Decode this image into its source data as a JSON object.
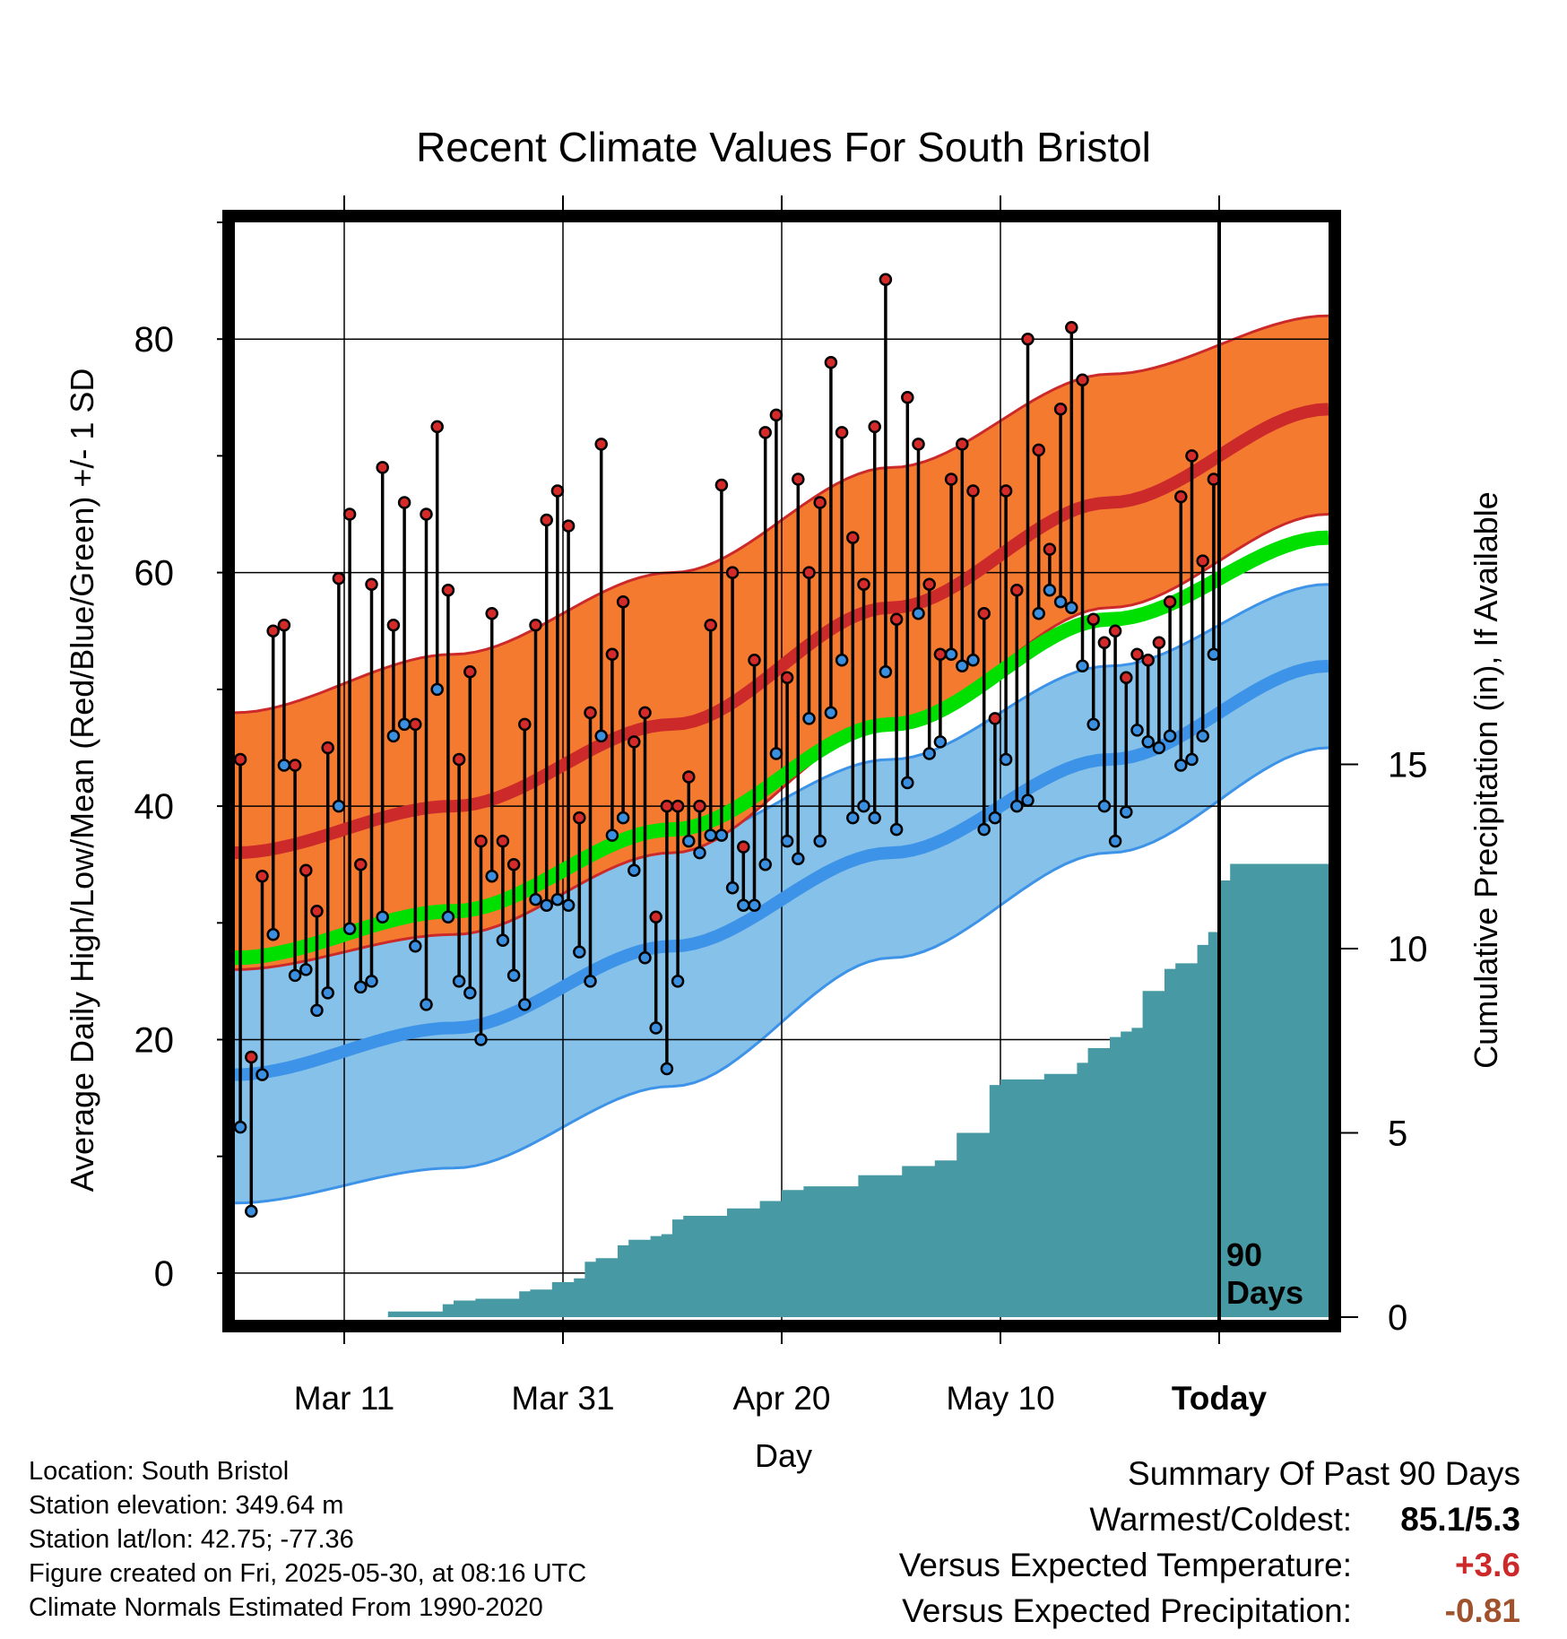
{
  "chart_data": {
    "type": "line",
    "title": "Recent Climate Values For South Bristol",
    "xlabel": "Day",
    "ylabel_left": "Average Daily High/Low/Mean (Red/Blue/Green) +/- 1 SD",
    "ylabel_right": "Cumulative Precipitation (in), If Available",
    "y_ticks_left": [
      "0",
      "20",
      "40",
      "60",
      "80"
    ],
    "y_ticks_right": [
      "0",
      "5",
      "10",
      "15"
    ],
    "x_tick_labels": [
      "Mar 11",
      "Mar 31",
      "Apr 20",
      "May 10",
      "Today"
    ],
    "ylim_left": [
      -4,
      90
    ],
    "ylim_right": [
      0,
      15
    ],
    "grid": true,
    "today_label": [
      "90",
      "Days"
    ],
    "colors": {
      "high_band": "#f47a30",
      "high_mean": "#cc2a2a",
      "low_band": "#85c1e8",
      "low_mean": "#3d93e8",
      "mean": "#00e000",
      "precip": "#479aa3",
      "high_marker": "#d42a2a",
      "low_marker": "#3a8fe0"
    },
    "normals_days": [
      0,
      20,
      40,
      60,
      80,
      100
    ],
    "normal_high": [
      36,
      40,
      47,
      57,
      66,
      74
    ],
    "normal_high_upper": [
      48,
      53,
      60,
      69,
      77,
      82
    ],
    "normal_high_lower": [
      26,
      29,
      36,
      47,
      57,
      65
    ],
    "normal_low": [
      17,
      21,
      28,
      36,
      44,
      52
    ],
    "normal_low_upper": [
      29,
      32,
      37,
      44,
      52,
      59
    ],
    "normal_low_lower": [
      6,
      9,
      16,
      27,
      36,
      45
    ],
    "normal_mean": [
      27,
      31,
      38,
      47,
      56,
      63
    ],
    "daily_highs": [
      44.0,
      18.5,
      34.0,
      55.0,
      55.5,
      43.5,
      34.5,
      31.0,
      45.0,
      59.5,
      65.0,
      35.0,
      59.0,
      69.0,
      55.5,
      66.0,
      47.0,
      65.0,
      72.5,
      58.5,
      44.0,
      51.5,
      37.0,
      56.5,
      37.0,
      35.0,
      47.0,
      55.5,
      64.5,
      67.0,
      64.0,
      39.0,
      48.0,
      71.0,
      53.0,
      57.5,
      45.5,
      48.0,
      30.5,
      40.0,
      40.0,
      42.5,
      40.0,
      55.5,
      67.5,
      60.0,
      36.5,
      52.5,
      72.0,
      73.5,
      51.0,
      68.0,
      60.0,
      66.0,
      78.0,
      72.0,
      63.0,
      59.0,
      72.5,
      85.1,
      56.0,
      75.0,
      71.0,
      59.0,
      53.0,
      68.0,
      71.0,
      67.0,
      56.5,
      47.5,
      67.0,
      58.5,
      80.0,
      70.5,
      62.0,
      74.0,
      81.0,
      76.5,
      56.0,
      54.0,
      55.0,
      51.0,
      53.0,
      52.5,
      54.0,
      57.5,
      66.5,
      70.0,
      61.0,
      68.0
    ],
    "daily_lows": [
      12.5,
      5.3,
      17.0,
      29.0,
      43.5,
      25.5,
      26.0,
      22.5,
      24.0,
      40.0,
      29.5,
      24.5,
      25.0,
      30.5,
      46.0,
      47.0,
      28.0,
      23.0,
      50.0,
      30.5,
      25.0,
      24.0,
      20.0,
      34.0,
      28.5,
      25.5,
      23.0,
      32.0,
      31.5,
      32.0,
      31.5,
      27.5,
      25.0,
      46.0,
      37.5,
      39.0,
      34.5,
      27.0,
      21.0,
      17.5,
      25.0,
      37.0,
      36.0,
      37.5,
      37.5,
      33.0,
      31.5,
      31.5,
      35.0,
      44.5,
      37.0,
      35.5,
      47.5,
      37.0,
      48.0,
      52.5,
      39.0,
      40.0,
      39.0,
      51.5,
      38.0,
      42.0,
      56.5,
      44.5,
      45.5,
      53.0,
      52.0,
      52.5,
      38.0,
      39.0,
      44.0,
      40.0,
      40.5,
      56.5,
      58.5,
      57.5,
      57.0,
      52.0,
      47.0,
      40.0,
      37.0,
      39.5,
      46.5,
      45.5,
      45.0,
      46.0,
      43.5,
      44.0,
      46.0,
      53.0
    ],
    "precip_days": [
      0,
      13,
      14,
      16,
      19,
      20,
      22,
      24,
      26,
      27,
      29,
      31,
      32,
      33,
      35,
      36,
      38,
      39,
      40,
      41,
      43,
      45,
      46,
      48,
      49,
      50,
      51,
      52,
      54,
      56,
      57,
      58,
      59,
      61,
      62,
      64,
      65,
      66,
      67,
      68,
      69,
      70,
      72,
      74,
      75,
      77,
      78,
      80,
      81,
      82,
      83,
      85,
      86,
      88,
      89,
      90,
      91,
      100
    ],
    "precip_cumulative": [
      0.0,
      0.0,
      0.15,
      0.15,
      0.35,
      0.45,
      0.5,
      0.5,
      0.7,
      0.75,
      0.95,
      1.05,
      1.5,
      1.6,
      1.95,
      2.1,
      2.2,
      2.25,
      2.65,
      2.75,
      2.75,
      2.95,
      2.95,
      3.15,
      3.15,
      3.45,
      3.45,
      3.55,
      3.55,
      3.55,
      3.85,
      3.85,
      3.85,
      4.1,
      4.1,
      4.25,
      4.25,
      5.0,
      5.0,
      5.0,
      6.3,
      6.45,
      6.45,
      6.6,
      6.6,
      6.9,
      7.3,
      7.6,
      7.75,
      7.85,
      8.85,
      9.45,
      9.6,
      10.1,
      10.45,
      11.85,
      12.3,
      12.3
    ]
  },
  "footer": {
    "location": "Location: South Bristol",
    "elevation": "Station elevation: 349.64 m",
    "latlon": "Station lat/lon: 42.75; -77.36",
    "created": "Figure created on Fri, 2025-05-30, at 08:16 UTC",
    "normals": "Climate Normals Estimated From 1990-2020"
  },
  "summary": {
    "heading": "Summary Of Past 90 Days",
    "warm_cold_label": "Warmest/Coldest:",
    "warm_cold_value": "85.1/5.3",
    "temp_label": "Versus Expected Temperature:",
    "temp_value": "+3.6",
    "temp_color": "#cc2a2a",
    "precip_label": "Versus Expected Precipitation:",
    "precip_value": "-0.81",
    "precip_color": "#a0522d"
  }
}
